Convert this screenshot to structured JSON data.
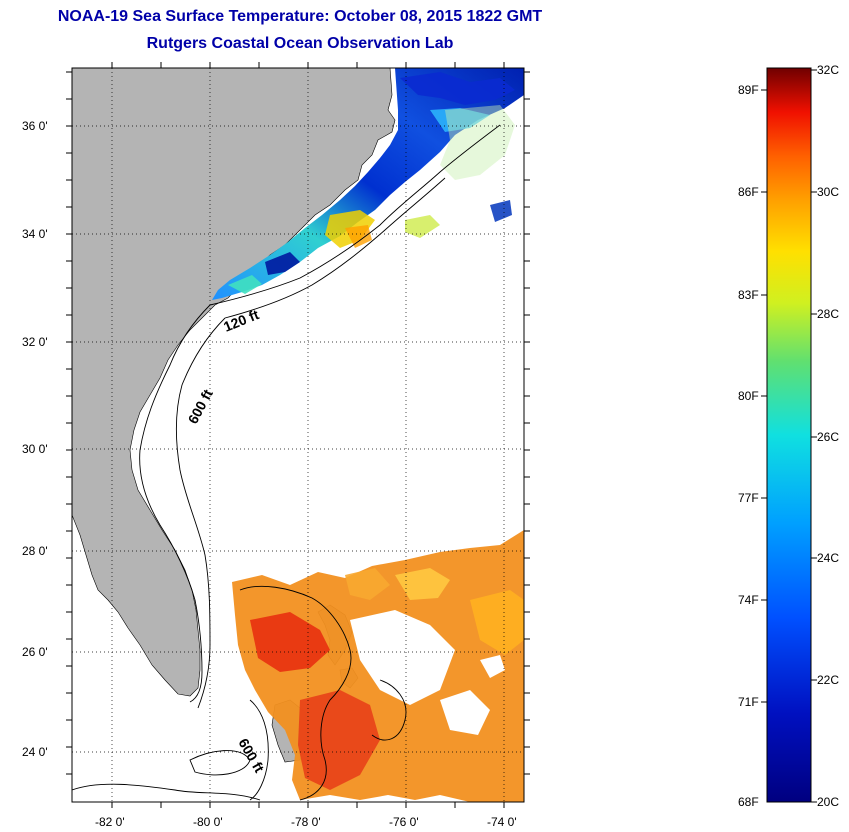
{
  "title": "NOAA-19 Sea Surface Temperature:  October 08, 2015 1822 GMT",
  "subtitle": "Rutgers Coastal Ocean Observation Lab",
  "map": {
    "lat_ticks": [
      "36 0'",
      "34 0'",
      "32 0'",
      "30 0'",
      "28 0'",
      "26 0'",
      "24 0'"
    ],
    "lon_ticks": [
      "-82 0'",
      "-80 0'",
      "-78 0'",
      "-76 0'",
      "-74 0'"
    ],
    "contour_labels": [
      "120 ft",
      "600 ft",
      "600 ft"
    ]
  },
  "colorbar": {
    "fahrenheit_labels": [
      "89F",
      "86F",
      "83F",
      "80F",
      "77F",
      "74F",
      "71F",
      "68F"
    ],
    "celsius_labels": [
      "32C",
      "30C",
      "28C",
      "26C",
      "24C",
      "22C",
      "20C"
    ],
    "colors": [
      "#800000",
      "#c00000",
      "#ff2000",
      "#ff6000",
      "#ffa000",
      "#ffe000",
      "#e0ff20",
      "#90e050",
      "#40e0a0",
      "#00e0e0",
      "#00a0ff",
      "#0060ff",
      "#0020e0",
      "#0000a0",
      "#000080"
    ]
  },
  "colors": {
    "land": "#b4b4b4",
    "title": "#0000a8"
  }
}
